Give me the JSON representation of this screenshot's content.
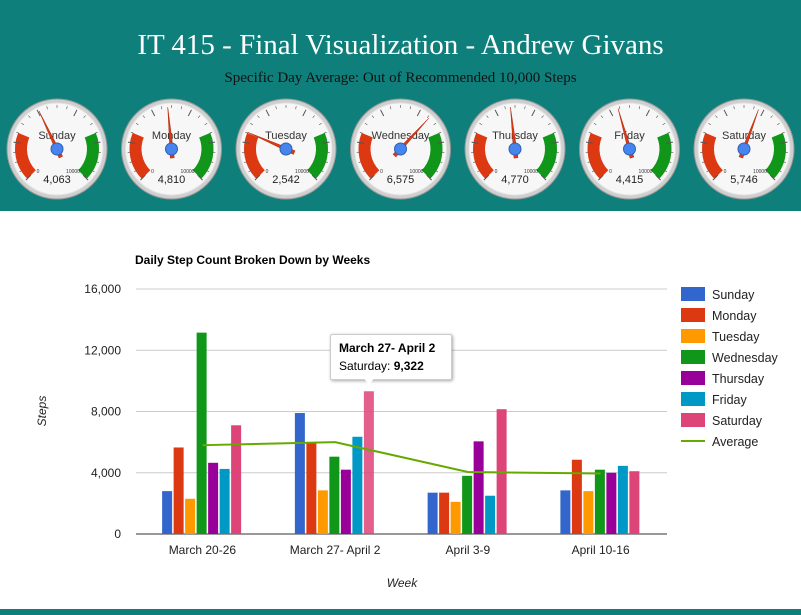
{
  "header": {
    "title": "IT 415 - Final Visualization - Andrew Givans",
    "subtitle": "Specific Day Average: Out of Recommended 10,000 Steps"
  },
  "gauges": {
    "min_label": "0",
    "max_label": "10000",
    "max": 10000,
    "items": [
      {
        "day": "Sunday",
        "value": 4063,
        "display": "4,063"
      },
      {
        "day": "Monday",
        "value": 4810,
        "display": "4,810"
      },
      {
        "day": "Tuesday",
        "value": 2542,
        "display": "2,542"
      },
      {
        "day": "Wednesday",
        "value": 6575,
        "display": "6,575"
      },
      {
        "day": "Thursday",
        "value": 4770,
        "display": "4,770"
      },
      {
        "day": "Friday",
        "value": 4415,
        "display": "4,415"
      },
      {
        "day": "Saturday",
        "value": 5746,
        "display": "5,746"
      }
    ],
    "colors": {
      "red": "#dc3912",
      "green": "#109618",
      "needle": "#dc3912",
      "hub": "#4684ee"
    }
  },
  "chart_data": {
    "type": "bar",
    "title": "Daily Step Count Broken Down by Weeks",
    "xlabel": "Week",
    "ylabel": "Steps",
    "ylim": [
      0,
      16000
    ],
    "yticks": [
      0,
      4000,
      8000,
      12000,
      16000
    ],
    "ytick_labels": [
      "0",
      "4,000",
      "8,000",
      "12,000",
      "16,000"
    ],
    "categories": [
      "March 20-26",
      "March 27- April 2",
      "April 3-9",
      "April 10-16"
    ],
    "series": [
      {
        "name": "Sunday",
        "color": "#3366cc",
        "values": [
          2800,
          7900,
          2700,
          2850
        ]
      },
      {
        "name": "Monday",
        "color": "#dc3912",
        "values": [
          5650,
          6000,
          2700,
          4850
        ]
      },
      {
        "name": "Tuesday",
        "color": "#ff9900",
        "values": [
          2300,
          2850,
          2100,
          2800
        ]
      },
      {
        "name": "Wednesday",
        "color": "#109618",
        "values": [
          13150,
          5050,
          3800,
          4200
        ]
      },
      {
        "name": "Thursday",
        "color": "#990099",
        "values": [
          4650,
          4200,
          6050,
          4000
        ]
      },
      {
        "name": "Friday",
        "color": "#0099c6",
        "values": [
          4250,
          6350,
          2500,
          4450
        ]
      },
      {
        "name": "Saturday",
        "color": "#dd4477",
        "values": [
          7100,
          9322,
          8150,
          4100
        ]
      }
    ],
    "line_series": {
      "name": "Average",
      "color": "#66aa00",
      "type": "line",
      "values": [
        5800,
        6000,
        4050,
        3950
      ]
    },
    "legend_position": "right",
    "grid": true,
    "tooltip": {
      "title": "March 27- April 2",
      "label": "Saturday:",
      "value": "9,322"
    }
  }
}
